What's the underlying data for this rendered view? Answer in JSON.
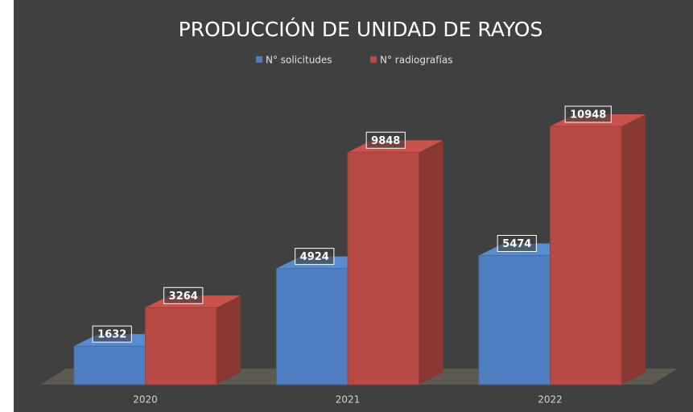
{
  "chart_data": {
    "type": "bar3d",
    "title": "PRODUCCIÓN DE UNIDAD DE RAYOS",
    "categories": [
      "2020",
      "2021",
      "2022"
    ],
    "series": [
      {
        "name": "N° solicitudes",
        "color": "#4f7fc0",
        "values": [
          1632,
          4924,
          5474
        ]
      },
      {
        "name": "N° radiografías",
        "color": "#b84a45",
        "values": [
          3264,
          9848,
          10948
        ]
      }
    ],
    "legend": "top"
  }
}
